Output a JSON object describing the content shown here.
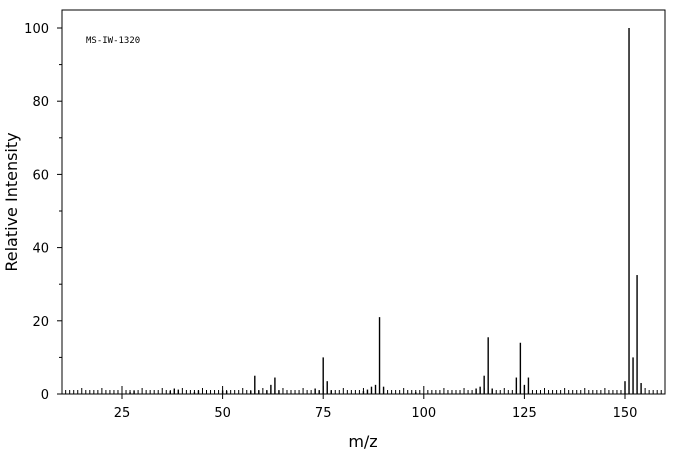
{
  "chart_data": {
    "type": "bar",
    "title": "",
    "annotation": "MS-IW-1320",
    "xlabel": "m/z",
    "ylabel": "Relative Intensity",
    "xlim": [
      10,
      160
    ],
    "ylim": [
      0,
      100
    ],
    "xticks": [
      25,
      50,
      75,
      100,
      125,
      150
    ],
    "yticks": [
      0,
      20,
      40,
      60,
      80,
      100
    ],
    "grid": false,
    "peaks": [
      {
        "x": 27,
        "y": 0.5
      },
      {
        "x": 28,
        "y": 0.8
      },
      {
        "x": 37,
        "y": 0.8
      },
      {
        "x": 38,
        "y": 1.5
      },
      {
        "x": 39,
        "y": 1.2
      },
      {
        "x": 43,
        "y": 0.5
      },
      {
        "x": 44,
        "y": 1.0
      },
      {
        "x": 50,
        "y": 1.0
      },
      {
        "x": 51,
        "y": 0.8
      },
      {
        "x": 57,
        "y": 0.8
      },
      {
        "x": 58,
        "y": 5.0
      },
      {
        "x": 59,
        "y": 1.0
      },
      {
        "x": 61,
        "y": 1.0
      },
      {
        "x": 62,
        "y": 2.5
      },
      {
        "x": 63,
        "y": 4.5
      },
      {
        "x": 64,
        "y": 1.0
      },
      {
        "x": 73,
        "y": 1.5
      },
      {
        "x": 74,
        "y": 1.0
      },
      {
        "x": 75,
        "y": 10.0
      },
      {
        "x": 76,
        "y": 3.5
      },
      {
        "x": 77,
        "y": 1.0
      },
      {
        "x": 85,
        "y": 0.8
      },
      {
        "x": 86,
        "y": 1.2
      },
      {
        "x": 87,
        "y": 2.0
      },
      {
        "x": 88,
        "y": 2.5
      },
      {
        "x": 89,
        "y": 21.0
      },
      {
        "x": 90,
        "y": 2.0
      },
      {
        "x": 98,
        "y": 0.5
      },
      {
        "x": 113,
        "y": 1.5
      },
      {
        "x": 114,
        "y": 2.0
      },
      {
        "x": 115,
        "y": 5.0
      },
      {
        "x": 116,
        "y": 15.5
      },
      {
        "x": 117,
        "y": 1.5
      },
      {
        "x": 123,
        "y": 4.5
      },
      {
        "x": 124,
        "y": 14.0
      },
      {
        "x": 125,
        "y": 2.5
      },
      {
        "x": 126,
        "y": 4.5
      },
      {
        "x": 150,
        "y": 3.5
      },
      {
        "x": 151,
        "y": 100.0
      },
      {
        "x": 152,
        "y": 10.0
      },
      {
        "x": 153,
        "y": 32.5
      },
      {
        "x": 154,
        "y": 3.0
      }
    ]
  }
}
